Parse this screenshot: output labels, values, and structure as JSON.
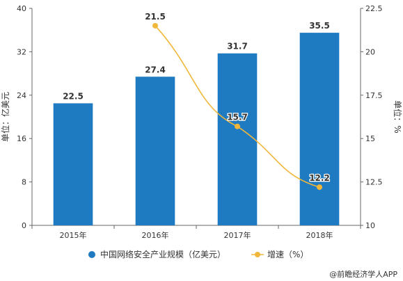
{
  "chart_data": {
    "type": "bar+line",
    "categories": [
      "2015年",
      "2016年",
      "2017年",
      "2018年"
    ],
    "series": [
      {
        "name": "中国网络安全产业规模（亿美元）",
        "type": "bar",
        "axis": "left",
        "values": [
          22.5,
          27.4,
          31.7,
          35.5
        ],
        "color": "#1f7bc1"
      },
      {
        "name": "增速（%）",
        "type": "line",
        "axis": "right",
        "values": [
          null,
          21.5,
          15.7,
          12.2
        ],
        "color": "#f0b73a"
      }
    ],
    "left_axis": {
      "label": "单位：亿美元",
      "min": 0,
      "max": 40,
      "ticks": [
        0,
        8,
        16,
        24,
        32,
        40
      ]
    },
    "right_axis": {
      "label": "单位：%",
      "min": 10,
      "max": 22.5,
      "ticks": [
        10,
        12.5,
        15,
        17.5,
        20,
        22.5
      ]
    },
    "legend_position": "bottom",
    "grid": false
  },
  "source": "@前瞻经济学人APP",
  "colors": {
    "axis": "#666666",
    "text": "#333333"
  }
}
